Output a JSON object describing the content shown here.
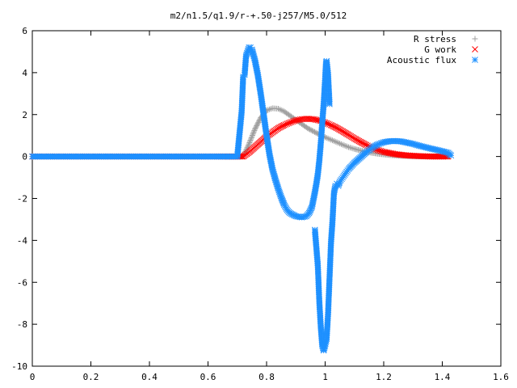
{
  "chart_data": {
    "type": "scatter",
    "title": "m2/n1.5/q1.9/r-+.50-j257/M5.0/512",
    "xlabel": "",
    "ylabel": "",
    "xlim": [
      0,
      1.6
    ],
    "ylim": [
      -10,
      6
    ],
    "x_ticks": [
      "0",
      "0.2",
      "0.4",
      "0.6",
      "0.8",
      "1",
      "1.2",
      "1.4",
      "1.6"
    ],
    "y_ticks": [
      "6",
      "4",
      "2",
      "0",
      "-2",
      "-4",
      "-6",
      "-8",
      "-10"
    ],
    "grid": false,
    "legend_position": "top-right",
    "series": [
      {
        "name": "R stress",
        "marker": "plus",
        "color": "#a0a0a0",
        "points": [
          [
            0.0,
            0
          ],
          [
            0.2,
            0
          ],
          [
            0.4,
            0
          ],
          [
            0.6,
            0
          ],
          [
            0.72,
            0.0
          ],
          [
            0.74,
            0.6
          ],
          [
            0.76,
            1.3
          ],
          [
            0.78,
            1.85
          ],
          [
            0.8,
            2.2
          ],
          [
            0.82,
            2.3
          ],
          [
            0.84,
            2.28
          ],
          [
            0.86,
            2.15
          ],
          [
            0.88,
            1.95
          ],
          [
            0.9,
            1.75
          ],
          [
            0.92,
            1.55
          ],
          [
            0.94,
            1.35
          ],
          [
            0.96,
            1.2
          ],
          [
            0.98,
            1.05
          ],
          [
            1.0,
            0.92
          ],
          [
            1.02,
            0.8
          ],
          [
            1.04,
            0.68
          ],
          [
            1.06,
            0.56
          ],
          [
            1.08,
            0.45
          ],
          [
            1.1,
            0.36
          ],
          [
            1.14,
            0.22
          ],
          [
            1.18,
            0.13
          ],
          [
            1.22,
            0.07
          ],
          [
            1.26,
            0.03
          ],
          [
            1.3,
            0.01
          ],
          [
            1.35,
            0.0
          ],
          [
            1.42,
            0.0
          ]
        ]
      },
      {
        "name": "G work",
        "marker": "cross",
        "color": "#ff0000",
        "points": [
          [
            0.0,
            0
          ],
          [
            0.2,
            0
          ],
          [
            0.4,
            0
          ],
          [
            0.6,
            0
          ],
          [
            0.72,
            0.0
          ],
          [
            0.74,
            0.2
          ],
          [
            0.76,
            0.45
          ],
          [
            0.78,
            0.7
          ],
          [
            0.8,
            0.95
          ],
          [
            0.82,
            1.15
          ],
          [
            0.84,
            1.35
          ],
          [
            0.86,
            1.5
          ],
          [
            0.88,
            1.62
          ],
          [
            0.9,
            1.72
          ],
          [
            0.92,
            1.78
          ],
          [
            0.94,
            1.8
          ],
          [
            0.96,
            1.78
          ],
          [
            0.98,
            1.72
          ],
          [
            1.0,
            1.62
          ],
          [
            1.02,
            1.5
          ],
          [
            1.04,
            1.36
          ],
          [
            1.06,
            1.2
          ],
          [
            1.08,
            1.03
          ],
          [
            1.1,
            0.86
          ],
          [
            1.12,
            0.7
          ],
          [
            1.14,
            0.55
          ],
          [
            1.16,
            0.42
          ],
          [
            1.18,
            0.31
          ],
          [
            1.2,
            0.22
          ],
          [
            1.24,
            0.11
          ],
          [
            1.28,
            0.05
          ],
          [
            1.32,
            0.02
          ],
          [
            1.36,
            0.0
          ],
          [
            1.42,
            0.0
          ]
        ]
      },
      {
        "name": "Acoustic flux",
        "marker": "star",
        "color": "#1e90ff",
        "points": [
          [
            0.0,
            0
          ],
          [
            0.2,
            0
          ],
          [
            0.4,
            0
          ],
          [
            0.6,
            0
          ],
          [
            0.7,
            0.0
          ],
          [
            0.715,
            2.15
          ],
          [
            0.72,
            3.8
          ],
          [
            0.725,
            3.9
          ],
          [
            0.73,
            4.8
          ],
          [
            0.74,
            5.2
          ],
          [
            0.745,
            5.2
          ],
          [
            0.75,
            5.1
          ],
          [
            0.76,
            4.6
          ],
          [
            0.77,
            3.9
          ],
          [
            0.78,
            3.0
          ],
          [
            0.79,
            2.0
          ],
          [
            0.8,
            1.0
          ],
          [
            0.81,
            0.1
          ],
          [
            0.82,
            -0.6
          ],
          [
            0.83,
            -1.1
          ],
          [
            0.84,
            -1.55
          ],
          [
            0.85,
            -1.95
          ],
          [
            0.86,
            -2.3
          ],
          [
            0.87,
            -2.55
          ],
          [
            0.88,
            -2.7
          ],
          [
            0.9,
            -2.85
          ],
          [
            0.92,
            -2.9
          ],
          [
            0.935,
            -2.85
          ],
          [
            0.945,
            -2.7
          ],
          [
            0.955,
            -2.4
          ],
          [
            0.96,
            -2.05
          ],
          [
            0.965,
            -1.7
          ],
          [
            0.97,
            -1.3
          ],
          [
            0.975,
            -0.85
          ],
          [
            0.98,
            -0.2
          ],
          [
            0.985,
            0.6
          ],
          [
            0.99,
            1.6
          ],
          [
            0.995,
            2.5
          ],
          [
            1.0,
            3.7
          ],
          [
            1.003,
            4.5
          ],
          [
            1.005,
            4.55
          ],
          [
            1.01,
            3.9
          ],
          [
            1.015,
            2.5
          ],
          [
            0.965,
            -3.5
          ],
          [
            0.968,
            -4.0
          ],
          [
            0.975,
            -5.2
          ],
          [
            0.98,
            -6.9
          ],
          [
            0.985,
            -8.1
          ],
          [
            0.99,
            -9.0
          ],
          [
            0.995,
            -9.25
          ],
          [
            1.0,
            -9.0
          ],
          [
            1.005,
            -8.7
          ],
          [
            1.01,
            -7.5
          ],
          [
            1.015,
            -5.8
          ],
          [
            1.02,
            -4.1
          ],
          [
            1.025,
            -3.1
          ],
          [
            1.03,
            -1.75
          ],
          [
            1.035,
            -1.4
          ],
          [
            1.04,
            -1.3
          ],
          [
            1.045,
            -1.4
          ],
          [
            1.05,
            -1.2
          ],
          [
            1.06,
            -1.0
          ],
          [
            1.07,
            -0.8
          ],
          [
            1.08,
            -0.6
          ],
          [
            1.1,
            -0.3
          ],
          [
            1.12,
            -0.05
          ],
          [
            1.14,
            0.2
          ],
          [
            1.16,
            0.42
          ],
          [
            1.18,
            0.58
          ],
          [
            1.2,
            0.68
          ],
          [
            1.22,
            0.73
          ],
          [
            1.24,
            0.74
          ],
          [
            1.26,
            0.72
          ],
          [
            1.28,
            0.66
          ],
          [
            1.3,
            0.6
          ],
          [
            1.32,
            0.52
          ],
          [
            1.34,
            0.45
          ],
          [
            1.36,
            0.38
          ],
          [
            1.38,
            0.32
          ],
          [
            1.4,
            0.25
          ],
          [
            1.42,
            0.18
          ],
          [
            1.43,
            0.05
          ]
        ]
      }
    ]
  }
}
